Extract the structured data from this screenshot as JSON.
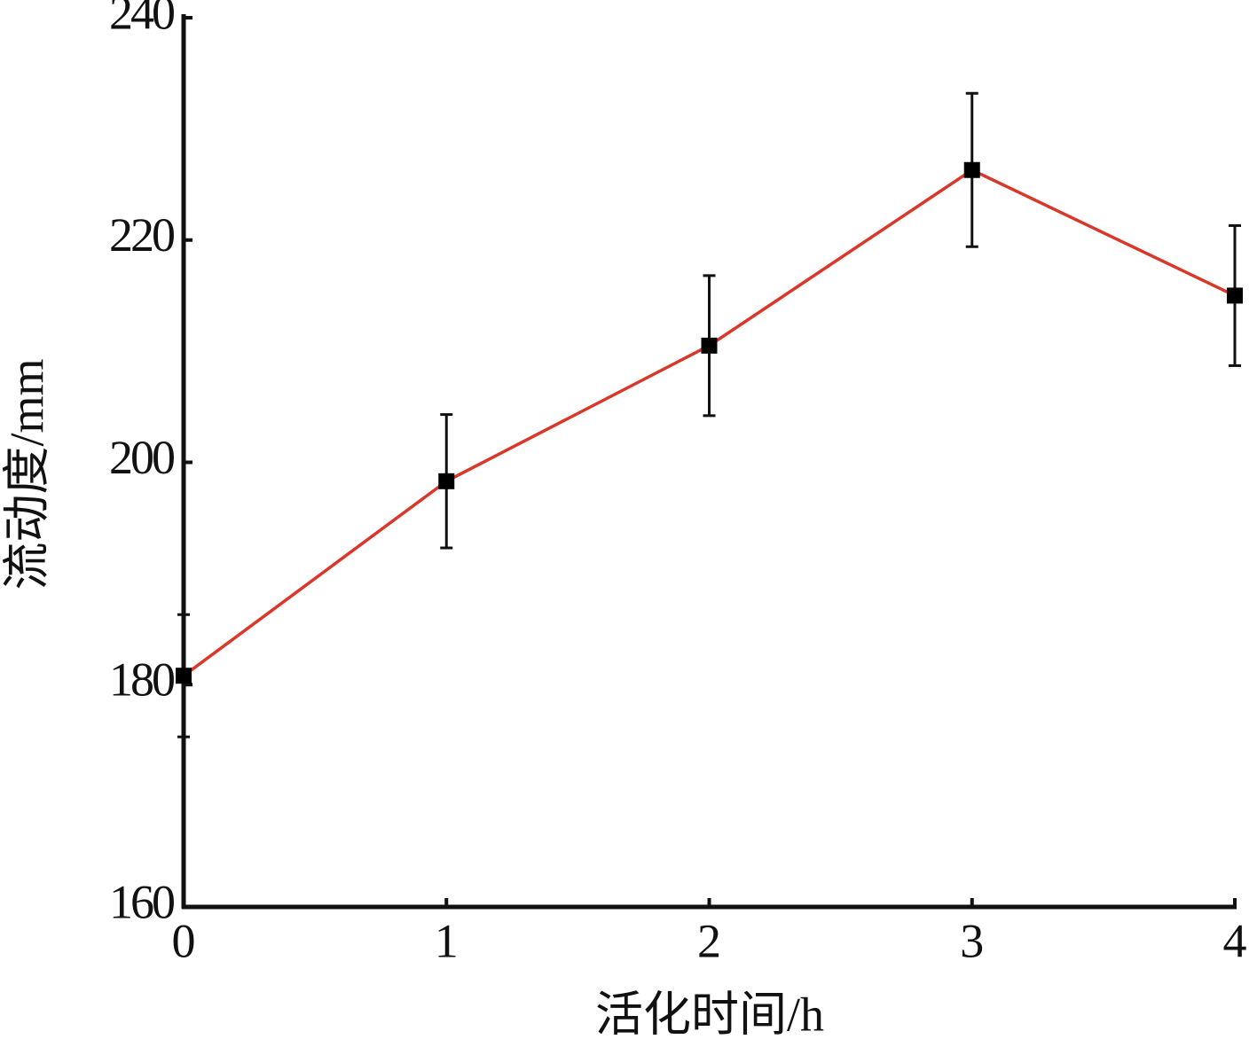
{
  "chart_data": {
    "type": "line",
    "x_label": "活化时间/h",
    "y_label": "流动度/mm",
    "x": [
      0,
      1,
      2,
      3,
      4
    ],
    "series": [
      {
        "color": "#d9372a",
        "marker_color": "#000000",
        "values": [
          180.8,
          198.3,
          210.5,
          226.3,
          215.0
        ],
        "errors": [
          5.5,
          6.0,
          6.3,
          6.9,
          6.3
        ]
      }
    ],
    "xlim": [
      0,
      4
    ],
    "xticks": [
      0,
      1,
      2,
      3,
      4
    ],
    "ylim": [
      160,
      240
    ],
    "yticks": [
      160,
      180,
      200,
      220,
      240
    ],
    "grid": false
  }
}
